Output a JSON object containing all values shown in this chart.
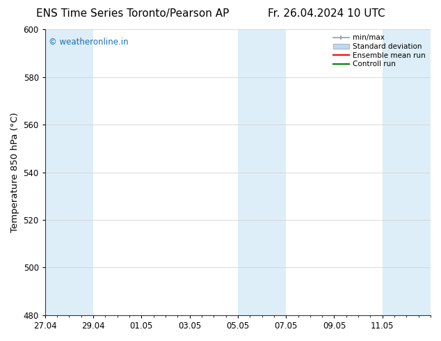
{
  "title_left": "ENS Time Series Toronto/Pearson AP",
  "title_right": "Fr. 26.04.2024 10 UTC",
  "ylabel": "Temperature 850 hPa (°C)",
  "ylim": [
    480,
    600
  ],
  "yticks": [
    480,
    500,
    520,
    540,
    560,
    580,
    600
  ],
  "xlim": [
    0,
    16
  ],
  "xtick_positions": [
    0,
    2,
    4,
    6,
    8,
    10,
    12,
    14
  ],
  "xtick_labels": [
    "27.04",
    "29.04",
    "01.05",
    "03.05",
    "05.05",
    "07.05",
    "09.05",
    "11.05"
  ],
  "background_color": "#ffffff",
  "plot_bg_color": "#ffffff",
  "shaded_bands": [
    {
      "x_start": 0,
      "x_end": 2,
      "color": "#ddeef8"
    },
    {
      "x_start": 2,
      "x_end": 4,
      "color": "#ffffff"
    },
    {
      "x_start": 4,
      "x_end": 6,
      "color": "#ffffff"
    },
    {
      "x_start": 6,
      "x_end": 8,
      "color": "#ffffff"
    },
    {
      "x_start": 8,
      "x_end": 10,
      "color": "#ddeef8"
    },
    {
      "x_start": 10,
      "x_end": 12,
      "color": "#ffffff"
    },
    {
      "x_start": 12,
      "x_end": 14,
      "color": "#ffffff"
    },
    {
      "x_start": 14,
      "x_end": 16,
      "color": "#ddeef8"
    }
  ],
  "legend_items": [
    {
      "label": "min/max",
      "color": "#aaaaaa",
      "style": "minmax"
    },
    {
      "label": "Standard deviation",
      "color": "#c5d8ea",
      "style": "stddev"
    },
    {
      "label": "Ensemble mean run",
      "color": "#ff0000",
      "style": "line"
    },
    {
      "label": "Controll run",
      "color": "#008000",
      "style": "line"
    }
  ],
  "watermark_text": "© weatheronline.in",
  "watermark_color": "#1a6eb5",
  "title_fontsize": 11,
  "tick_fontsize": 8.5,
  "ylabel_fontsize": 9.5
}
